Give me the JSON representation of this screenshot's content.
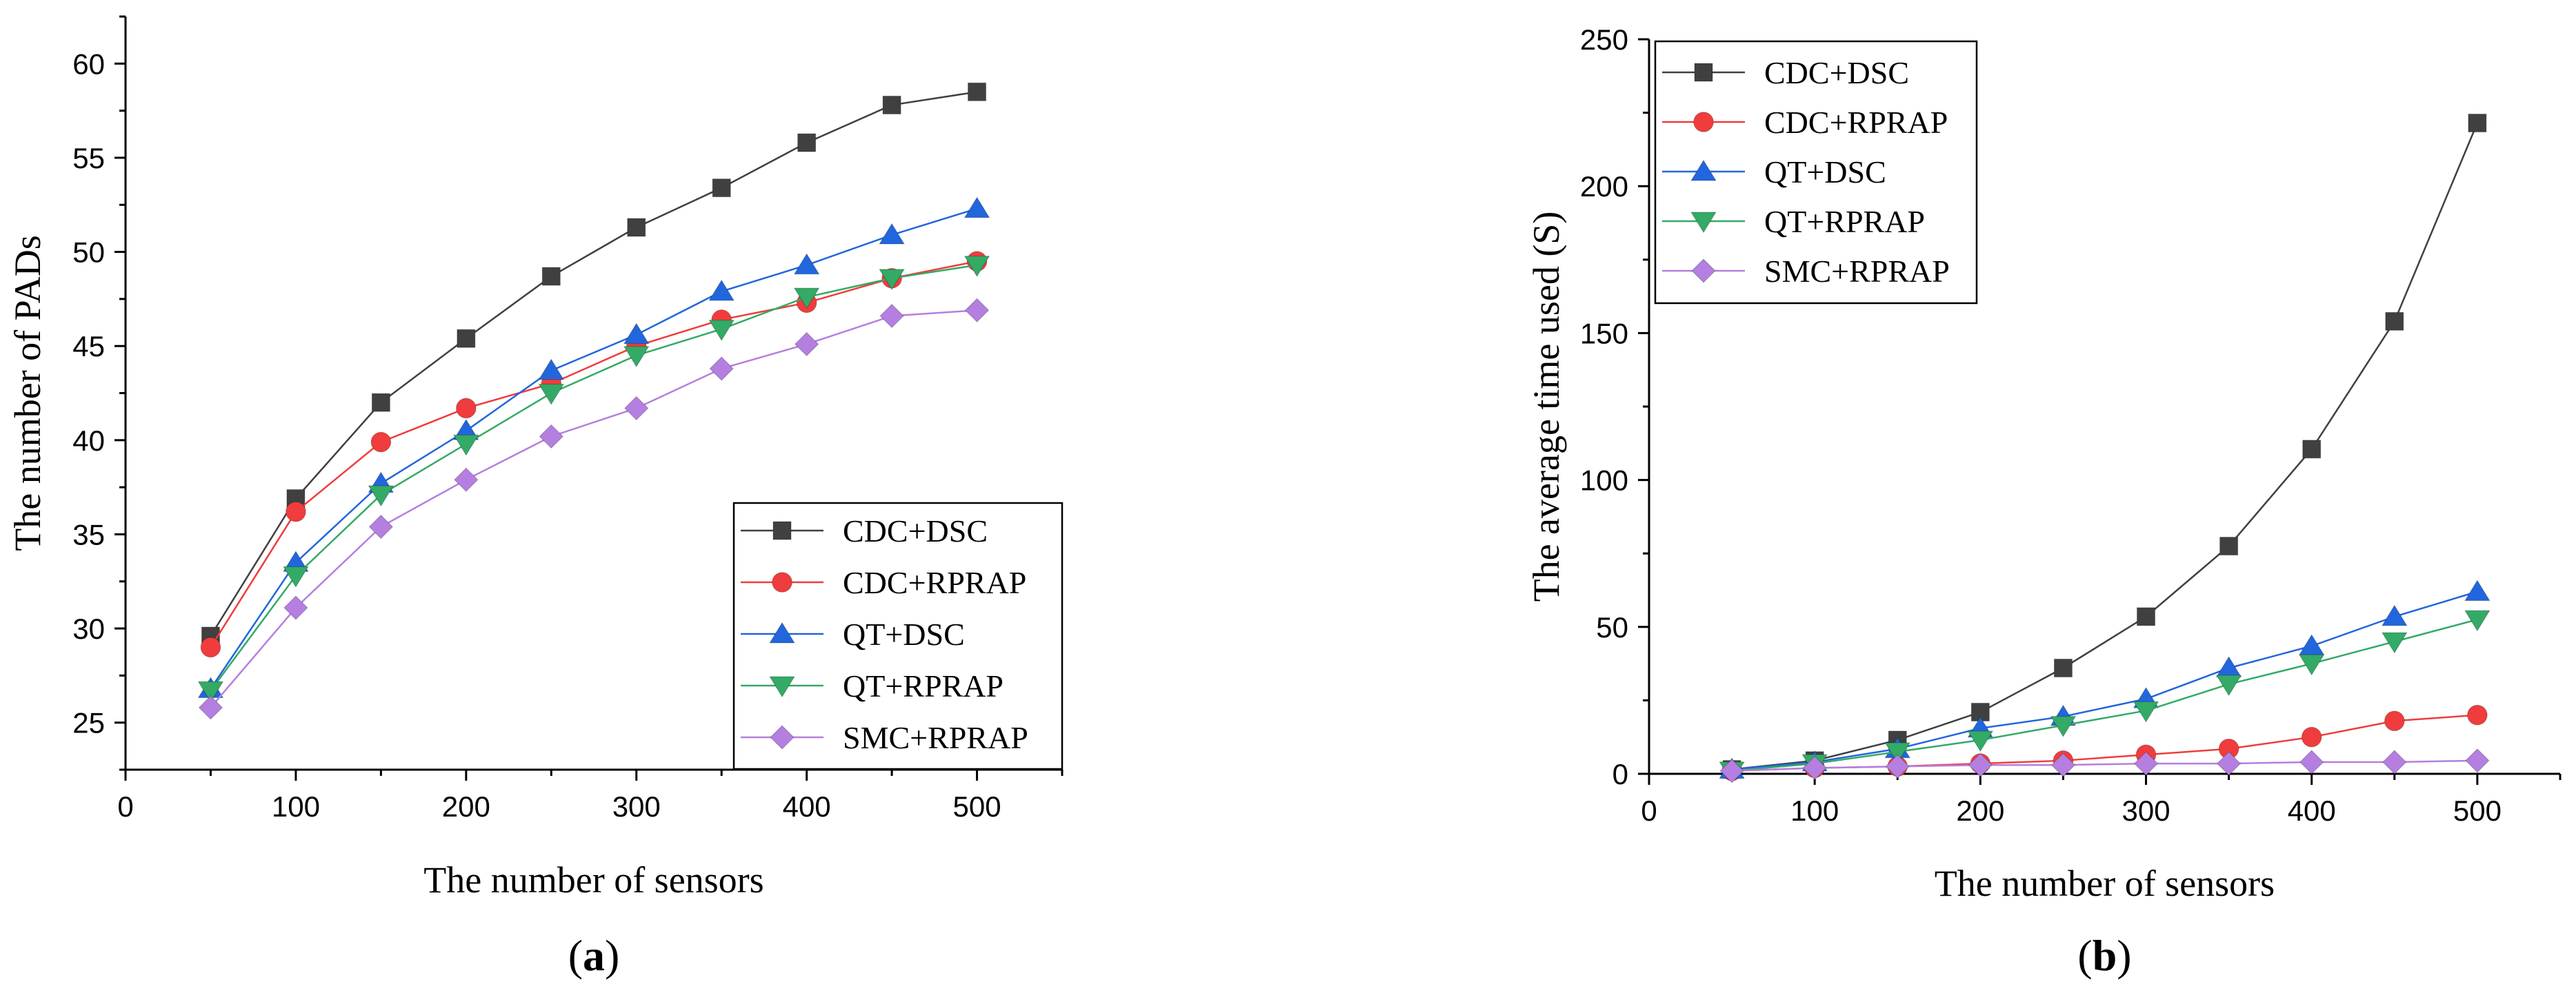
{
  "chart_data": [
    {
      "type": "line",
      "panel_label": "a",
      "xlabel": "The number of sensors",
      "ylabel": "The number of PADs",
      "xlim": [
        0,
        550
      ],
      "ylim": [
        22.5,
        62.5
      ],
      "xticks": [
        0,
        100,
        200,
        300,
        400,
        500
      ],
      "yticks": [
        25,
        30,
        35,
        40,
        45,
        50,
        55,
        60
      ],
      "grid": false,
      "legend": "bottom-right",
      "x": [
        50,
        100,
        150,
        200,
        250,
        300,
        350,
        400,
        450,
        500
      ],
      "series": [
        {
          "name": "CDC+DSC",
          "marker": "square",
          "color": "#404040",
          "values": [
            29.6,
            36.9,
            42.0,
            45.4,
            48.7,
            51.3,
            53.4,
            55.8,
            57.8,
            58.5
          ]
        },
        {
          "name": "CDC+RPRAP",
          "marker": "circle",
          "color": "#f03c3c",
          "values": [
            29.0,
            36.2,
            39.9,
            41.7,
            43.0,
            45.0,
            46.4,
            47.3,
            48.6,
            49.5
          ]
        },
        {
          "name": "QT+DSC",
          "marker": "triangle-up",
          "color": "#2266dd",
          "values": [
            26.8,
            33.5,
            37.7,
            40.5,
            43.7,
            45.6,
            47.9,
            49.3,
            50.9,
            52.3
          ]
        },
        {
          "name": "QT+RPRAP",
          "marker": "triangle-down",
          "color": "#33aa66",
          "values": [
            26.7,
            32.8,
            37.1,
            39.8,
            42.5,
            44.5,
            45.9,
            47.6,
            48.6,
            49.3
          ]
        },
        {
          "name": "SMC+RPRAP",
          "marker": "diamond",
          "color": "#b47fe0",
          "values": [
            25.8,
            31.1,
            35.4,
            37.9,
            40.2,
            41.7,
            43.8,
            45.1,
            46.6,
            46.9
          ]
        }
      ]
    },
    {
      "type": "line",
      "panel_label": "b",
      "xlabel": "The number of sensors",
      "ylabel": "The average time used (S)",
      "xlim": [
        0,
        550
      ],
      "ylim": [
        0,
        250
      ],
      "xticks": [
        0,
        100,
        200,
        300,
        400,
        500
      ],
      "yticks": [
        0,
        50,
        100,
        150,
        200,
        250
      ],
      "grid": false,
      "legend": "top-left",
      "x": [
        50,
        100,
        150,
        200,
        250,
        300,
        350,
        400,
        450,
        500
      ],
      "series": [
        {
          "name": "CDC+DSC",
          "marker": "square",
          "color": "#404040",
          "values": [
            1.5,
            4.5,
            11.5,
            21.0,
            36.0,
            53.5,
            77.5,
            110.5,
            154.0,
            221.5
          ]
        },
        {
          "name": "CDC+RPRAP",
          "marker": "circle",
          "color": "#f03c3c",
          "values": [
            1.0,
            2.0,
            2.5,
            3.5,
            4.5,
            6.5,
            8.5,
            12.5,
            18.0,
            20.0
          ]
        },
        {
          "name": "QT+DSC",
          "marker": "triangle-up",
          "color": "#2266dd",
          "values": [
            1.5,
            4.0,
            8.5,
            15.5,
            19.5,
            25.5,
            36.0,
            43.5,
            53.5,
            62.0
          ]
        },
        {
          "name": "QT+RPRAP",
          "marker": "triangle-down",
          "color": "#33aa66",
          "values": [
            1.0,
            3.5,
            7.5,
            11.5,
            16.5,
            21.5,
            30.5,
            37.5,
            45.0,
            52.5
          ]
        },
        {
          "name": "SMC+RPRAP",
          "marker": "diamond",
          "color": "#b47fe0",
          "values": [
            1.0,
            2.0,
            2.5,
            3.0,
            3.0,
            3.5,
            3.5,
            4.0,
            4.0,
            4.5
          ]
        }
      ]
    }
  ]
}
